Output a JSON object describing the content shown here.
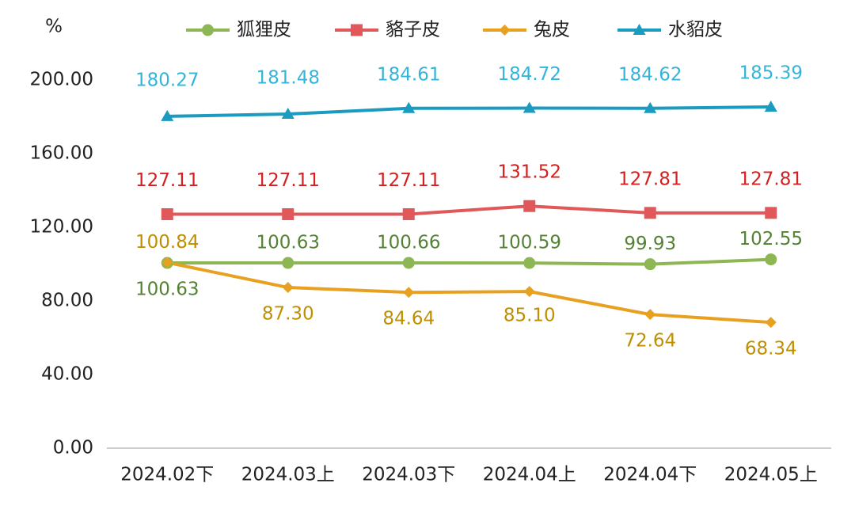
{
  "chart_data": {
    "type": "line",
    "y_label": "%",
    "categories": [
      "2024.02下",
      "2024.03上",
      "2024.03下",
      "2024.04上",
      "2024.04下",
      "2024.05上"
    ],
    "ylim": [
      0,
      200
    ],
    "yticks": [
      {
        "value": 0,
        "label": "0.00"
      },
      {
        "value": 40,
        "label": "40.00"
      },
      {
        "value": 80,
        "label": "80.00"
      },
      {
        "value": 120,
        "label": "120.00"
      },
      {
        "value": 160,
        "label": "160.00"
      },
      {
        "value": 200,
        "label": "200.00"
      }
    ],
    "grid": false,
    "legend": "top",
    "series": [
      {
        "name": "狐狸皮",
        "color": "#8db654",
        "label_color": "#548235",
        "marker": "circle",
        "values": [
          100.63,
          100.63,
          100.66,
          100.59,
          99.93,
          102.55
        ],
        "value_labels": [
          "100.63",
          "100.63",
          "100.66",
          "100.59",
          "99.93",
          "102.55"
        ]
      },
      {
        "name": "貉子皮",
        "color": "#e0585a",
        "label_color": "#d42020",
        "marker": "square",
        "values": [
          127.11,
          127.11,
          127.11,
          131.52,
          127.81,
          127.81
        ],
        "value_labels": [
          "127.11",
          "127.11",
          "127.11",
          "131.52",
          "127.81",
          "127.81"
        ]
      },
      {
        "name": "兔皮",
        "color": "#e8a020",
        "label_color": "#bf8f00",
        "marker": "diamond",
        "values": [
          100.84,
          87.3,
          84.64,
          85.1,
          72.64,
          68.34
        ],
        "value_labels": [
          "100.84",
          "87.30",
          "84.64",
          "85.10",
          "72.64",
          "68.34"
        ]
      },
      {
        "name": "水貂皮",
        "color": "#1a9bbf",
        "label_color": "#33b5d9",
        "marker": "triangle",
        "values": [
          180.27,
          181.48,
          184.61,
          184.72,
          184.62,
          185.39
        ],
        "value_labels": [
          "180.27",
          "181.48",
          "184.61",
          "184.72",
          "184.62",
          "185.39"
        ]
      }
    ]
  }
}
